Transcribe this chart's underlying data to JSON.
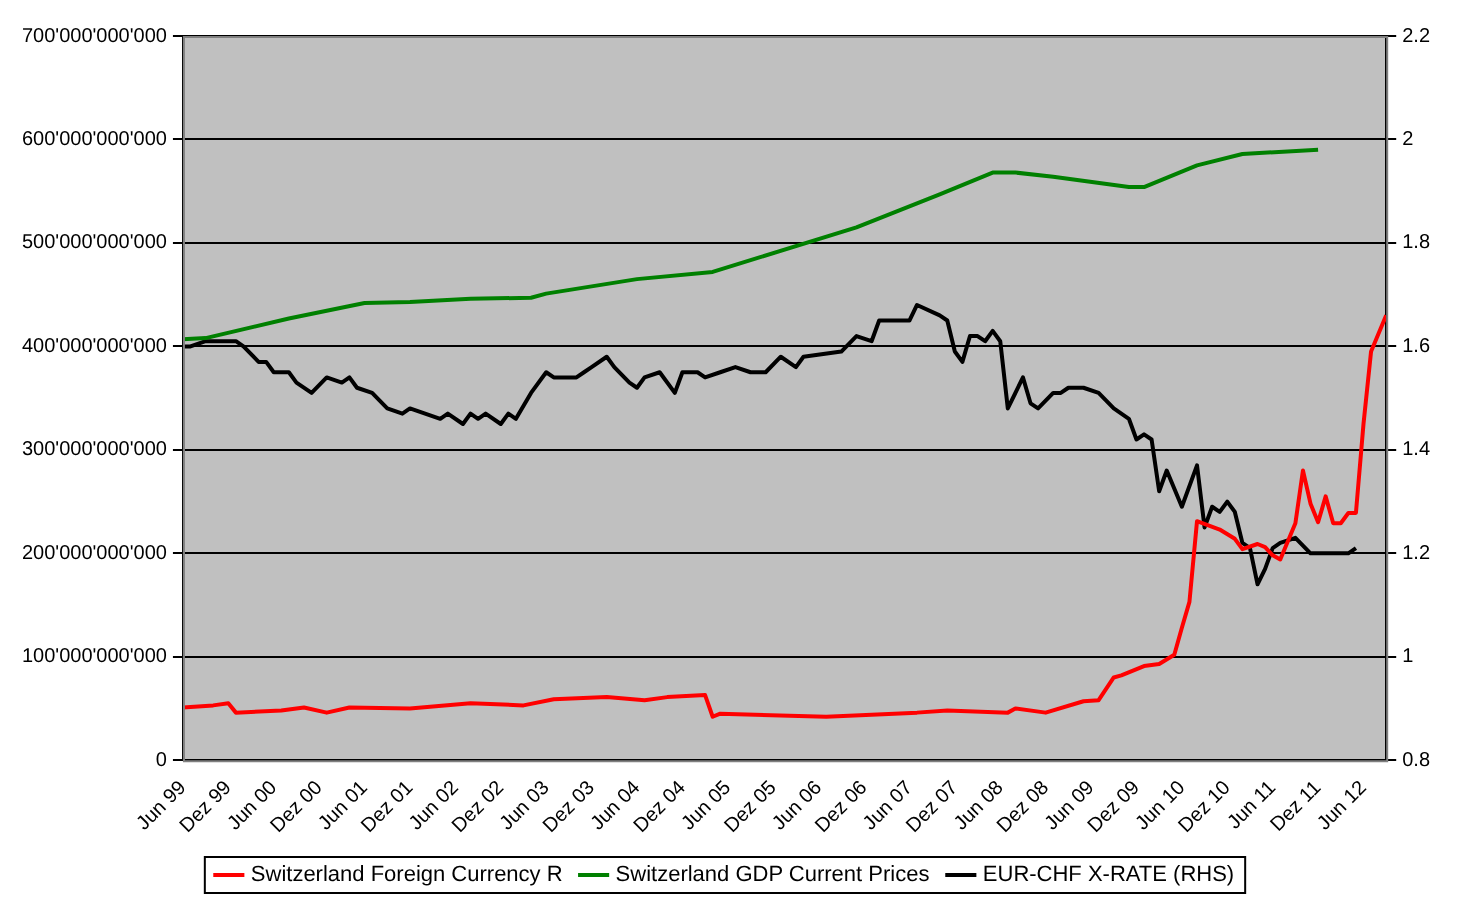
{
  "chart_data": {
    "type": "line",
    "xlim": [
      "1999-06",
      "2012-09"
    ],
    "xticks": [
      {
        "value": "1999-06",
        "label": "Jun 99"
      },
      {
        "value": "1999-12",
        "label": "Dez 99"
      },
      {
        "value": "2000-06",
        "label": "Jun 00"
      },
      {
        "value": "2000-12",
        "label": "Dez 00"
      },
      {
        "value": "2001-06",
        "label": "Jun 01"
      },
      {
        "value": "2001-12",
        "label": "Dez 01"
      },
      {
        "value": "2002-06",
        "label": "Jun 02"
      },
      {
        "value": "2002-12",
        "label": "Dez 02"
      },
      {
        "value": "2003-06",
        "label": "Jun 03"
      },
      {
        "value": "2003-12",
        "label": "Dez 03"
      },
      {
        "value": "2004-06",
        "label": "Jun 04"
      },
      {
        "value": "2004-12",
        "label": "Dez 04"
      },
      {
        "value": "2005-06",
        "label": "Jun 05"
      },
      {
        "value": "2005-12",
        "label": "Dez 05"
      },
      {
        "value": "2006-06",
        "label": "Jun 06"
      },
      {
        "value": "2006-12",
        "label": "Dez 06"
      },
      {
        "value": "2007-06",
        "label": "Jun 07"
      },
      {
        "value": "2007-12",
        "label": "Dez 07"
      },
      {
        "value": "2008-06",
        "label": "Jun 08"
      },
      {
        "value": "2008-12",
        "label": "Dez 08"
      },
      {
        "value": "2009-06",
        "label": "Jun 09"
      },
      {
        "value": "2009-12",
        "label": "Dez 09"
      },
      {
        "value": "2010-06",
        "label": "Jun 10"
      },
      {
        "value": "2010-12",
        "label": "Dez 10"
      },
      {
        "value": "2011-06",
        "label": "Jun 11"
      },
      {
        "value": "2011-12",
        "label": "Dez 11"
      },
      {
        "value": "2012-06",
        "label": "Jun 12"
      }
    ],
    "ylim": [
      0,
      700000000000
    ],
    "yticks": [
      0,
      {
        "value": 100000000000,
        "label": "100'000'000'000"
      },
      {
        "value": 200000000000,
        "label": "200'000'000'000"
      },
      {
        "value": 300000000000,
        "label": "300'000'000'000"
      },
      {
        "value": 400000000000,
        "label": "400'000'000'000"
      },
      {
        "value": 500000000000,
        "label": "500'000'000'000"
      },
      {
        "value": 600000000000,
        "label": "600'000'000'000"
      },
      {
        "value": 700000000000,
        "label": "700'000'000'000"
      }
    ],
    "y2lim": [
      0.8,
      2.2
    ],
    "y2ticks": [
      0.8,
      1,
      1.2,
      1.4,
      1.6,
      1.8,
      2,
      2.2
    ],
    "grid": "y",
    "legend": "bottom",
    "marker": "none",
    "line_style": "solid",
    "series": [
      {
        "name": "Switzerland Foreign Currency R",
        "color": "#ff0000",
        "x": [
          "1999-06",
          "1999-10",
          "1999-12",
          "2000-01",
          "2000-07",
          "2000-10",
          "2001-01",
          "2001-04",
          "2001-12",
          "2002-08",
          "2003-03",
          "2003-07",
          "2004-02",
          "2004-07",
          "2004-10",
          "2005-03",
          "2005-04",
          "2005-05",
          "2006-07",
          "2007-07",
          "2007-11",
          "2008-07",
          "2008-08",
          "2008-12",
          "2009-05",
          "2009-07",
          "2009-09",
          "2009-10",
          "2010-01",
          "2010-03",
          "2010-05",
          "2010-06",
          "2010-07",
          "2010-08",
          "2010-11",
          "2011-01",
          "2011-02",
          "2011-04",
          "2011-05",
          "2011-06",
          "2011-07",
          "2011-09",
          "2011-10",
          "2011-11",
          "2011-12",
          "2012-01",
          "2012-02",
          "2012-03",
          "2012-04",
          "2012-05",
          "2012-06",
          "2012-07",
          "2012-09"
        ],
        "values": [
          51000000000,
          53000000000,
          55000000000,
          46000000000,
          48000000000,
          51000000000,
          46000000000,
          51000000000,
          50000000000,
          55000000000,
          53000000000,
          59000000000,
          61000000000,
          58000000000,
          61000000000,
          63000000000,
          42000000000,
          45000000000,
          42000000000,
          46000000000,
          48000000000,
          46000000000,
          50000000000,
          46000000000,
          57000000000,
          58000000000,
          80000000000,
          82000000000,
          91000000000,
          93000000000,
          102000000000,
          128000000000,
          153000000000,
          231000000000,
          223000000000,
          214000000000,
          204000000000,
          209000000000,
          206000000000,
          198000000000,
          194000000000,
          229000000000,
          280000000000,
          248000000000,
          230000000000,
          255000000000,
          229000000000,
          229000000000,
          239000000000,
          239000000000,
          325000000000,
          395000000000,
          430000000000
        ]
      },
      {
        "name": "Switzerland GDP Current Prices",
        "color": "#008000",
        "x": [
          "1999-06",
          "1999-09",
          "2000-08",
          "2001-06",
          "2001-12",
          "2002-08",
          "2003-04",
          "2003-06",
          "2004-06",
          "2005-04",
          "2006-11",
          "2007-10",
          "2008-05",
          "2008-08",
          "2009-01",
          "2009-11",
          "2010-01",
          "2010-08",
          "2011-02",
          "2011-12"
        ],
        "values": [
          407000000000,
          408000000000,
          427000000000,
          442000000000,
          443000000000,
          446000000000,
          447000000000,
          451000000000,
          465000000000,
          472000000000,
          515000000000,
          547000000000,
          568000000000,
          568000000000,
          564000000000,
          554000000000,
          554000000000,
          575000000000,
          586000000000,
          590000000000
        ]
      },
      {
        "name": "EUR-CHF X-RATE (RHS)",
        "color": "#000000",
        "axis": "y2",
        "x": [
          "1999-06",
          "1999-07",
          "1999-09",
          "2000-01",
          "2000-02",
          "2000-04",
          "2000-05",
          "2000-06",
          "2000-08",
          "2000-09",
          "2000-11",
          "2001-01",
          "2001-03",
          "2001-04",
          "2001-05",
          "2001-07",
          "2001-09",
          "2001-11",
          "2001-12",
          "2002-04",
          "2002-05",
          "2002-07",
          "2002-08",
          "2002-09",
          "2002-10",
          "2002-12",
          "2003-01",
          "2003-02",
          "2003-04",
          "2003-06",
          "2003-07",
          "2003-10",
          "2003-11",
          "2003-12",
          "2004-02",
          "2004-03",
          "2004-05",
          "2004-06",
          "2004-07",
          "2004-09",
          "2004-11",
          "2004-12",
          "2005-02",
          "2005-03",
          "2005-05",
          "2005-07",
          "2005-09",
          "2005-11",
          "2006-01",
          "2006-03",
          "2006-04",
          "2006-09",
          "2006-11",
          "2007-01",
          "2007-02",
          "2007-04",
          "2007-06",
          "2007-07",
          "2007-10",
          "2007-11",
          "2007-12",
          "2008-01",
          "2008-02",
          "2008-03",
          "2008-04",
          "2008-05",
          "2008-06",
          "2008-07",
          "2008-09",
          "2008-10",
          "2008-11",
          "2009-01",
          "2009-02",
          "2009-03",
          "2009-05",
          "2009-07",
          "2009-09",
          "2009-11",
          "2009-12",
          "2010-01",
          "2010-02",
          "2010-03",
          "2010-04",
          "2010-06",
          "2010-08",
          "2010-09",
          "2010-10",
          "2010-11",
          "2010-12",
          "2011-01",
          "2011-02",
          "2011-03",
          "2011-04",
          "2011-05",
          "2011-06",
          "2011-07",
          "2011-09",
          "2011-11",
          "2012-04",
          "2012-05"
        ],
        "values": [
          1.6,
          1.6,
          1.61,
          1.61,
          1.6,
          1.57,
          1.57,
          1.55,
          1.55,
          1.53,
          1.51,
          1.54,
          1.53,
          1.54,
          1.52,
          1.51,
          1.48,
          1.47,
          1.48,
          1.46,
          1.47,
          1.45,
          1.47,
          1.46,
          1.47,
          1.45,
          1.47,
          1.46,
          1.51,
          1.55,
          1.54,
          1.54,
          1.55,
          1.56,
          1.58,
          1.56,
          1.53,
          1.52,
          1.54,
          1.55,
          1.51,
          1.55,
          1.55,
          1.54,
          1.55,
          1.56,
          1.55,
          1.55,
          1.58,
          1.56,
          1.58,
          1.59,
          1.62,
          1.61,
          1.65,
          1.65,
          1.65,
          1.68,
          1.66,
          1.65,
          1.59,
          1.57,
          1.62,
          1.62,
          1.61,
          1.63,
          1.61,
          1.48,
          1.54,
          1.49,
          1.48,
          1.51,
          1.51,
          1.52,
          1.52,
          1.51,
          1.48,
          1.46,
          1.42,
          1.43,
          1.42,
          1.32,
          1.36,
          1.29,
          1.37,
          1.25,
          1.29,
          1.28,
          1.3,
          1.28,
          1.22,
          1.21,
          1.14,
          1.17,
          1.21,
          1.22,
          1.23,
          1.2,
          1.2,
          1.21
        ]
      }
    ]
  }
}
